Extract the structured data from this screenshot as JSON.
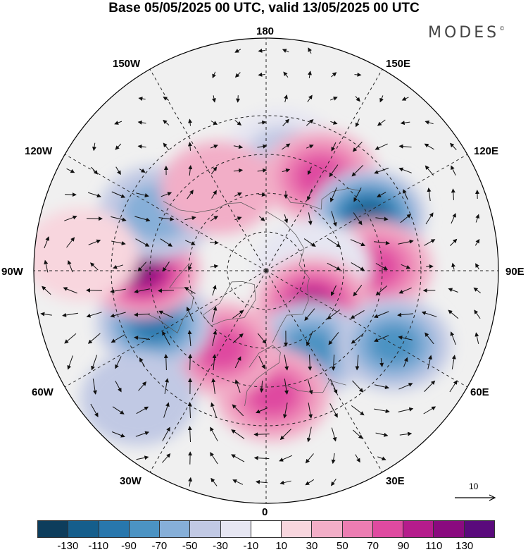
{
  "title": "Base 05/05/2025 00 UTC, valid 13/05/2025 00 UTC",
  "logo": {
    "text": "MODES",
    "mark": "©"
  },
  "longitude_labels": {
    "top": "180",
    "bottom": "0",
    "left": "90W",
    "right": "90E",
    "upper_left_1": "150W",
    "upper_left_2": "120W",
    "upper_right_1": "150E",
    "upper_right_2": "120E",
    "lower_left_1": "60W",
    "lower_left_2": "30W",
    "lower_right_1": "60E",
    "lower_right_2": "30E"
  },
  "reference_vector": {
    "label": "10"
  },
  "colorbar": {
    "colors": [
      "#0d3d5c",
      "#155e8c",
      "#2877ad",
      "#4b93c3",
      "#86afd8",
      "#c1c9e4",
      "#e6e6f2",
      "#ffffff",
      "#f8d6de",
      "#f2aec7",
      "#ec7db2",
      "#df4aa0",
      "#b51c8c",
      "#8a0a7f",
      "#5a0a7c"
    ],
    "tick_labels": [
      "-130",
      "-110",
      "-90",
      "-70",
      "-50",
      "-30",
      "-10",
      "10",
      "30",
      "50",
      "70",
      "90",
      "110",
      "130"
    ]
  },
  "anomaly_centers": [
    {
      "lon": 172,
      "lat": 45,
      "value": -45
    },
    {
      "lon": 150,
      "lat": 48,
      "value": 80
    },
    {
      "lon": 118,
      "lat": 45,
      "value": -120
    },
    {
      "lon": 92,
      "lat": 48,
      "value": 80
    },
    {
      "lon": 95,
      "lat": 72,
      "value": -30
    },
    {
      "lon": 55,
      "lat": 68,
      "value": 90
    },
    {
      "lon": 30,
      "lat": 55,
      "value": -80
    },
    {
      "lon": 60,
      "lat": 33,
      "value": -80
    },
    {
      "lon": 3,
      "lat": 42,
      "value": 80
    },
    {
      "lon": -30,
      "lat": 55,
      "value": 70
    },
    {
      "lon": -65,
      "lat": 42,
      "value": -110
    },
    {
      "lon": -90,
      "lat": 42,
      "value": 120
    },
    {
      "lon": -118,
      "lat": 42,
      "value": -60
    },
    {
      "lon": -150,
      "lat": 53,
      "value": 35
    },
    {
      "lon": -45,
      "lat": 20,
      "value": -50
    },
    {
      "lon": -95,
      "lat": 18,
      "value": 25
    }
  ]
}
